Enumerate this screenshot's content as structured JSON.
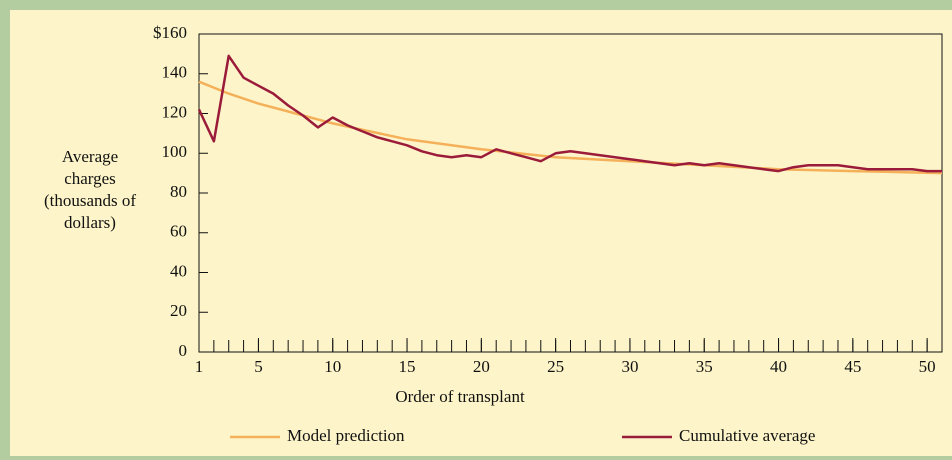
{
  "chart_data": {
    "type": "line",
    "ylabel": [
      "Average",
      "charges",
      "(thousands of",
      "dollars)"
    ],
    "xlabel": "Order of transplant",
    "xlim": [
      1,
      51
    ],
    "xticks": [
      1,
      5,
      10,
      15,
      20,
      25,
      30,
      35,
      40,
      45,
      50
    ],
    "xminorticks": [
      1,
      2,
      3,
      4,
      5,
      6,
      7,
      8,
      9,
      10,
      11,
      12,
      13,
      14,
      15,
      16,
      17,
      18,
      19,
      20,
      21,
      22,
      23,
      24,
      25,
      26,
      27,
      28,
      29,
      30,
      31,
      32,
      33,
      34,
      35,
      36,
      37,
      38,
      39,
      40,
      41,
      42,
      43,
      44,
      45,
      46,
      47,
      48,
      49,
      50,
      51
    ],
    "ylim": [
      0,
      160
    ],
    "yticks": [
      0,
      20,
      40,
      60,
      80,
      100,
      120,
      140,
      {
        "value": 160,
        "label": "$160"
      }
    ],
    "legend": "bottom",
    "series": [
      {
        "name": "Model prediction",
        "color": "#f5b05a",
        "x": [
          1,
          3,
          5,
          7,
          10,
          15,
          20,
          25,
          30,
          35,
          40,
          45,
          51
        ],
        "values": [
          136,
          130,
          125,
          121,
          115,
          107,
          102,
          98,
          96,
          94,
          92,
          91,
          90
        ]
      },
      {
        "name": "Cumulative average",
        "color": "#9b1b3a",
        "x": [
          1,
          2,
          3,
          4,
          5,
          6,
          7,
          8,
          9,
          10,
          11,
          12,
          13,
          14,
          15,
          16,
          17,
          18,
          19,
          20,
          21,
          22,
          23,
          24,
          25,
          26,
          27,
          28,
          29,
          30,
          31,
          32,
          33,
          34,
          35,
          36,
          37,
          38,
          39,
          40,
          41,
          42,
          43,
          44,
          45,
          46,
          47,
          48,
          49,
          50,
          51
        ],
        "values": [
          122,
          106,
          149,
          138,
          134,
          130,
          124,
          119,
          113,
          118,
          114,
          111,
          108,
          106,
          104,
          101,
          99,
          98,
          99,
          98,
          102,
          100,
          98,
          96,
          100,
          101,
          100,
          99,
          98,
          97,
          96,
          95,
          94,
          95,
          94,
          95,
          94,
          93,
          92,
          91,
          93,
          94,
          94,
          94,
          93,
          92,
          92,
          92,
          92,
          91,
          91
        ]
      }
    ]
  }
}
